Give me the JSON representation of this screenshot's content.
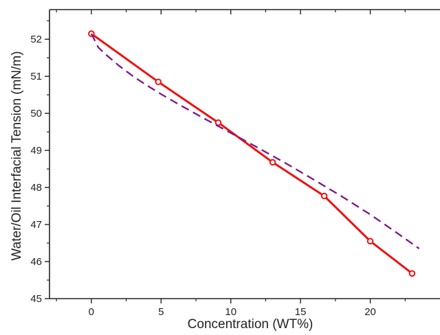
{
  "chart_data": {
    "type": "line",
    "title": "",
    "xlabel": "Concentration (WT%)",
    "ylabel": "Water/Oil Interfacial Tension (mN/m)",
    "xlim": [
      -3,
      25
    ],
    "ylim": [
      45,
      52.8
    ],
    "x_ticks": [
      0,
      5,
      10,
      15,
      20
    ],
    "x_tick_labels": [
      "0",
      "5",
      "10",
      "15",
      "20"
    ],
    "y_ticks": [
      45,
      46,
      47,
      48,
      49,
      50,
      51,
      52
    ],
    "y_tick_labels": [
      "45",
      "46",
      "47",
      "48",
      "49",
      "50",
      "51",
      "52"
    ],
    "grid": false,
    "legend": "none",
    "series": [
      {
        "style": "solid line with open circle markers",
        "color": "#ee1111",
        "x": [
          0,
          4.8,
          9.1,
          13,
          16.7,
          20,
          23
        ],
        "y": [
          52.15,
          50.85,
          49.75,
          48.68,
          47.77,
          46.55,
          45.68
        ]
      },
      {
        "style": "dashed fitted curve",
        "color": "#7d1d8a",
        "x": [
          0,
          0.5,
          1,
          2,
          3,
          4,
          5,
          6,
          8,
          10,
          12,
          14,
          16,
          18,
          20,
          22,
          23.5
        ],
        "y": [
          52.15,
          51.78,
          51.6,
          51.28,
          51.0,
          50.75,
          50.52,
          50.3,
          49.88,
          49.47,
          49.06,
          48.64,
          48.2,
          47.75,
          47.27,
          46.75,
          46.35
        ]
      }
    ]
  }
}
